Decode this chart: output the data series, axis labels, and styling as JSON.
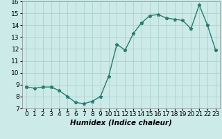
{
  "x": [
    0,
    1,
    2,
    3,
    4,
    5,
    6,
    7,
    8,
    9,
    10,
    11,
    12,
    13,
    14,
    15,
    16,
    17,
    18,
    19,
    20,
    21,
    22,
    23
  ],
  "y": [
    8.8,
    8.7,
    8.8,
    8.8,
    8.5,
    8.0,
    7.5,
    7.4,
    7.6,
    8.0,
    9.7,
    12.4,
    11.9,
    13.3,
    14.2,
    14.8,
    14.9,
    14.6,
    14.5,
    14.4,
    13.7,
    15.7,
    14.0,
    11.9
  ],
  "xlim": [
    -0.5,
    23.5
  ],
  "ylim": [
    7,
    16
  ],
  "yticks": [
    7,
    8,
    9,
    10,
    11,
    12,
    13,
    14,
    15,
    16
  ],
  "xticks": [
    0,
    1,
    2,
    3,
    4,
    5,
    6,
    7,
    8,
    9,
    10,
    11,
    12,
    13,
    14,
    15,
    16,
    17,
    18,
    19,
    20,
    21,
    22,
    23
  ],
  "xlabel": "Humidex (Indice chaleur)",
  "line_color": "#2a7a6e",
  "marker": "*",
  "marker_size": 3.5,
  "bg_color": "#cceae8",
  "grid_color": "#b0d4d0",
  "xlabel_fontsize": 7.5,
  "tick_fontsize": 6.5,
  "line_width": 1.0
}
